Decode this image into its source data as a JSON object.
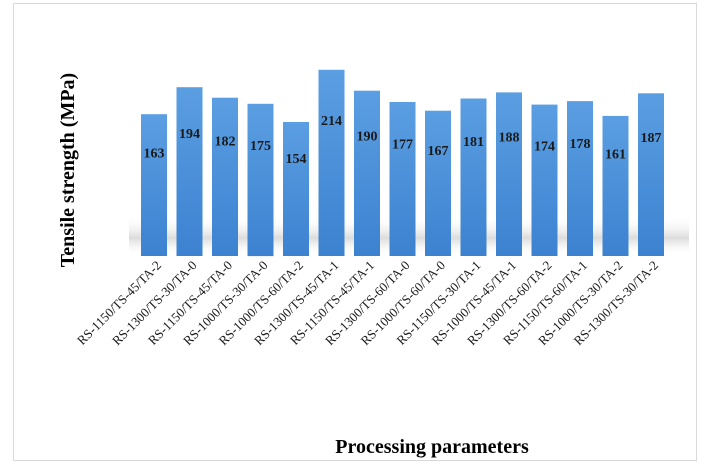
{
  "chart_data": {
    "type": "bar",
    "xlabel": "Processing parameters",
    "ylabel": "Tensile strength (MPa)",
    "categories": [
      "RS-1150/TS-45/TA-2",
      "RS-1300/TS-30/TA-0",
      "RS-1150/TS-45/TA-0",
      "RS-1000/TS-30/TA-0",
      "RS-1000/TS-60/TA-2",
      "RS-1300/TS-45/TA-1",
      "RS-1150/TS-45/TA-1",
      "RS-1300/TS-60/TA-0",
      "RS-1000/TS-60/TA-0",
      "RS-1150/TS-30/TA-1",
      "RS-1000/TS-45/TA-1",
      "RS-1300/TS-60/TA-2",
      "RS-1150/TS-60/TA-1",
      "RS-1000/TS-30/TA-2",
      "RS-1300/TS-30/TA-2"
    ],
    "values": [
      163,
      194,
      182,
      175,
      154,
      214,
      190,
      177,
      167,
      181,
      188,
      174,
      178,
      161,
      187
    ],
    "data_labels": [
      "163",
      "194",
      "182",
      "175",
      "154",
      "214",
      "190",
      "177",
      "167",
      "181",
      "188",
      "174",
      "178",
      "161",
      "187"
    ],
    "ylim": [
      0,
      214
    ],
    "grid": false,
    "legend": "none",
    "bar_color": "#4a8fd6"
  }
}
